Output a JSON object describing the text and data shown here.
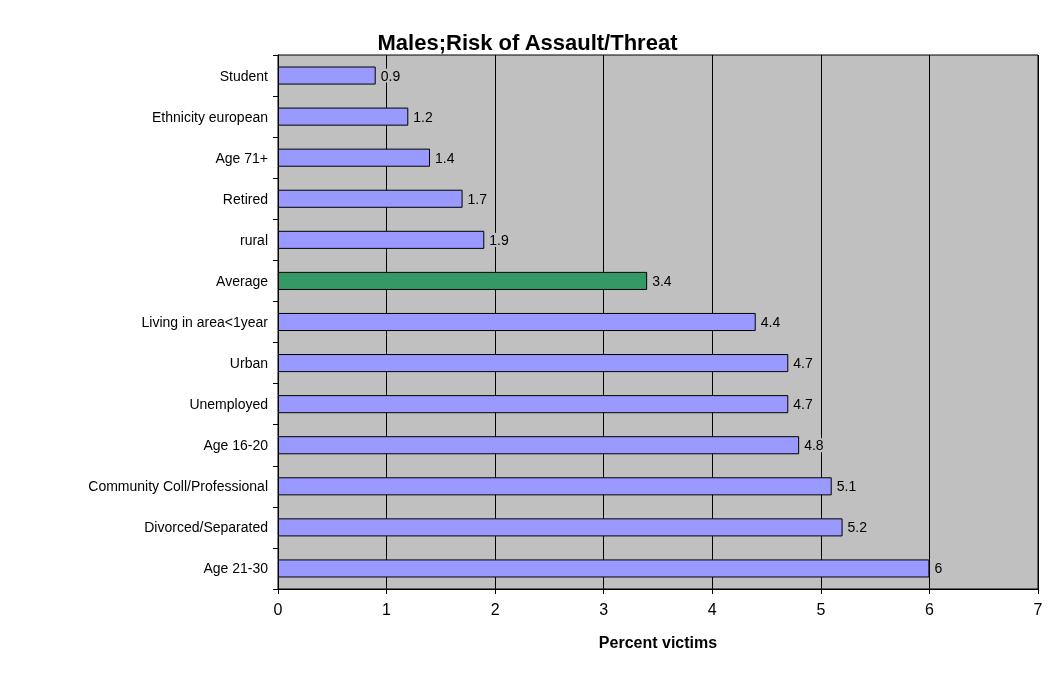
{
  "chart_data": {
    "type": "bar",
    "orientation": "horizontal",
    "title": "Males;Risk of Assault/Threat",
    "xlabel": "Percent victims",
    "categories": [
      "Student",
      "Ethnicity european",
      "Age 71+",
      "Retired",
      "rural",
      "Average",
      "Living in area<1year",
      "Urban",
      "Unemployed",
      "Age 16-20",
      "Community Coll/Professional",
      "Divorced/Separated",
      "Age 21-30"
    ],
    "values": [
      0.9,
      1.2,
      1.4,
      1.7,
      1.9,
      3.4,
      4.4,
      4.7,
      4.7,
      4.8,
      5.1,
      5.2,
      6
    ],
    "colors": [
      "#9999ff",
      "#9999ff",
      "#9999ff",
      "#9999ff",
      "#9999ff",
      "#339966",
      "#9999ff",
      "#9999ff",
      "#9999ff",
      "#9999ff",
      "#9999ff",
      "#9999ff",
      "#9999ff"
    ],
    "xlim": [
      0,
      7
    ],
    "xticks": [
      0,
      1,
      2,
      3,
      4,
      5,
      6,
      7
    ],
    "grid": "x",
    "data_labels": true
  }
}
